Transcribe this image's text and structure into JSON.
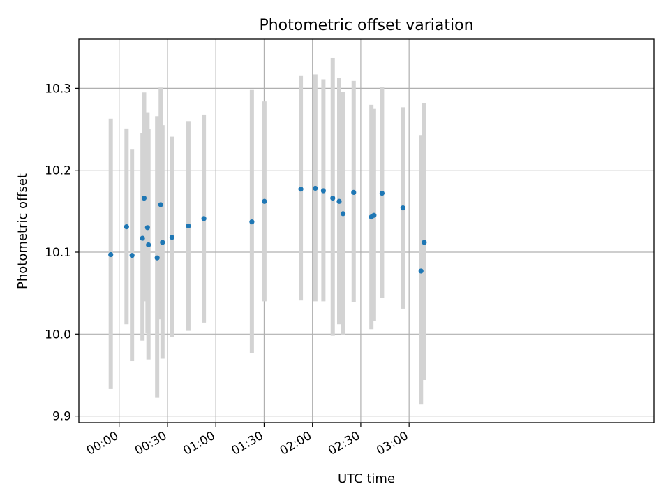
{
  "chart_data": {
    "type": "scatter",
    "title": "Photometric offset variation",
    "xlabel": "UTC time",
    "ylabel": "Photometric offset",
    "grid": true,
    "xlim": [
      -25,
      332
    ],
    "ylim": [
      9.892,
      10.36
    ],
    "xticks": [
      {
        "value": 0,
        "label": "00:00"
      },
      {
        "value": 30,
        "label": "00:30"
      },
      {
        "value": 60,
        "label": "01:00"
      },
      {
        "value": 90,
        "label": "01:30"
      },
      {
        "value": 120,
        "label": "02:00"
      },
      {
        "value": 150,
        "label": "02:30"
      },
      {
        "value": 180,
        "label": "03:00"
      }
    ],
    "yticks": [
      {
        "value": 9.9,
        "label": "9.9"
      },
      {
        "value": 10.0,
        "label": "10.0"
      },
      {
        "value": 10.1,
        "label": "10.1"
      },
      {
        "value": 10.2,
        "label": "10.2"
      },
      {
        "value": 10.3,
        "label": "10.3"
      }
    ],
    "series": [
      {
        "name": "offset",
        "color": "#1f77b4",
        "errorbar_color": "#d3d3d3",
        "points": [
          {
            "t": -5.2,
            "y": 10.097,
            "lo": 9.933,
            "hi": 10.263
          },
          {
            "t": 4.6,
            "y": 10.131,
            "lo": 10.012,
            "hi": 10.251
          },
          {
            "t": 8.0,
            "y": 10.096,
            "lo": 9.967,
            "hi": 10.226
          },
          {
            "t": 14.5,
            "y": 10.117,
            "lo": 9.992,
            "hi": 10.245
          },
          {
            "t": 15.5,
            "y": 10.166,
            "lo": 10.04,
            "hi": 10.295
          },
          {
            "t": 17.6,
            "y": 10.13,
            "lo": 10.002,
            "hi": 10.27
          },
          {
            "t": 18.2,
            "y": 10.109,
            "lo": 9.969,
            "hi": 10.25
          },
          {
            "t": 23.6,
            "y": 10.093,
            "lo": 9.923,
            "hi": 10.266
          },
          {
            "t": 25.8,
            "y": 10.158,
            "lo": 10.018,
            "hi": 10.301
          },
          {
            "t": 26.9,
            "y": 10.112,
            "lo": 9.97,
            "hi": 10.255
          },
          {
            "t": 32.8,
            "y": 10.118,
            "lo": 9.996,
            "hi": 10.241
          },
          {
            "t": 43.0,
            "y": 10.132,
            "lo": 10.004,
            "hi": 10.26
          },
          {
            "t": 52.6,
            "y": 10.141,
            "lo": 10.014,
            "hi": 10.268
          },
          {
            "t": 82.4,
            "y": 10.137,
            "lo": 9.977,
            "hi": 10.298
          },
          {
            "t": 90.2,
            "y": 10.162,
            "lo": 10.04,
            "hi": 10.284
          },
          {
            "t": 112.8,
            "y": 10.177,
            "lo": 10.041,
            "hi": 10.315
          },
          {
            "t": 121.8,
            "y": 10.178,
            "lo": 10.04,
            "hi": 10.317
          },
          {
            "t": 126.8,
            "y": 10.175,
            "lo": 10.04,
            "hi": 10.311
          },
          {
            "t": 132.6,
            "y": 10.166,
            "lo": 9.998,
            "hi": 10.337
          },
          {
            "t": 136.6,
            "y": 10.162,
            "lo": 10.012,
            "hi": 10.313
          },
          {
            "t": 139.0,
            "y": 10.147,
            "lo": 9.999,
            "hi": 10.296
          },
          {
            "t": 145.6,
            "y": 10.173,
            "lo": 10.039,
            "hi": 10.309
          },
          {
            "t": 156.6,
            "y": 10.143,
            "lo": 10.006,
            "hi": 10.28
          },
          {
            "t": 158.2,
            "y": 10.145,
            "lo": 10.016,
            "hi": 10.275
          },
          {
            "t": 163.2,
            "y": 10.172,
            "lo": 10.044,
            "hi": 10.302
          },
          {
            "t": 176.2,
            "y": 10.154,
            "lo": 10.031,
            "hi": 10.277
          },
          {
            "t": 187.4,
            "y": 10.077,
            "lo": 9.914,
            "hi": 10.243
          },
          {
            "t": 189.4,
            "y": 10.112,
            "lo": 9.944,
            "hi": 10.282
          }
        ]
      }
    ]
  }
}
